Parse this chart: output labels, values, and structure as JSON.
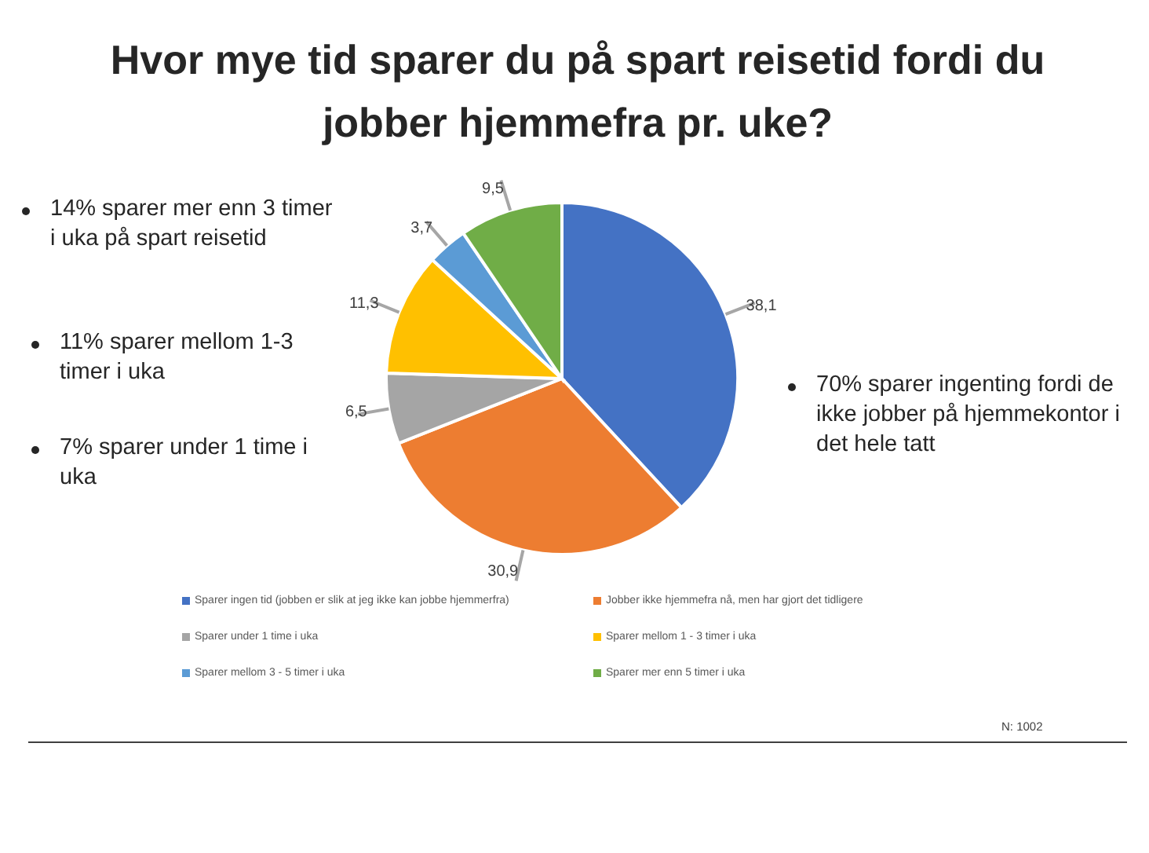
{
  "chart_data": {
    "type": "pie",
    "title": "Hvor mye tid sparer du på spart reisetid fordi du jobber hjemmefra pr. uke?",
    "categories": [
      "Sparer ingen tid (jobben er slik at jeg ikke kan jobbe hjemmerfra)",
      "Jobber ikke hjemmefra nå, men har gjort det tidligere",
      "Sparer under 1 time i uka",
      "Sparer mellom 1 - 3 timer i uka",
      "Sparer mellom 3 - 5 timer i uka",
      "Sparer mer enn 5 timer i uka"
    ],
    "values": [
      38.1,
      30.9,
      6.5,
      11.3,
      3.7,
      9.5
    ],
    "value_labels": [
      "38,1",
      "30,9",
      "6,5",
      "11,3",
      "3,7",
      "9,5"
    ],
    "colors": [
      "#4472c4",
      "#ed7d31",
      "#a5a5a5",
      "#ffc000",
      "#5b9bd5",
      "#70ad47"
    ],
    "legend": "bottom",
    "annotations": [
      "14% sparer mer enn 3 timer i uka på spart reisetid",
      "11% sparer mellom 1-3 timer i uka",
      "7% sparer under 1 time i uka",
      "70% sparer ingenting fordi de ikke jobber på hjemmekontor i det hele tatt",
      "N: 1002"
    ]
  }
}
